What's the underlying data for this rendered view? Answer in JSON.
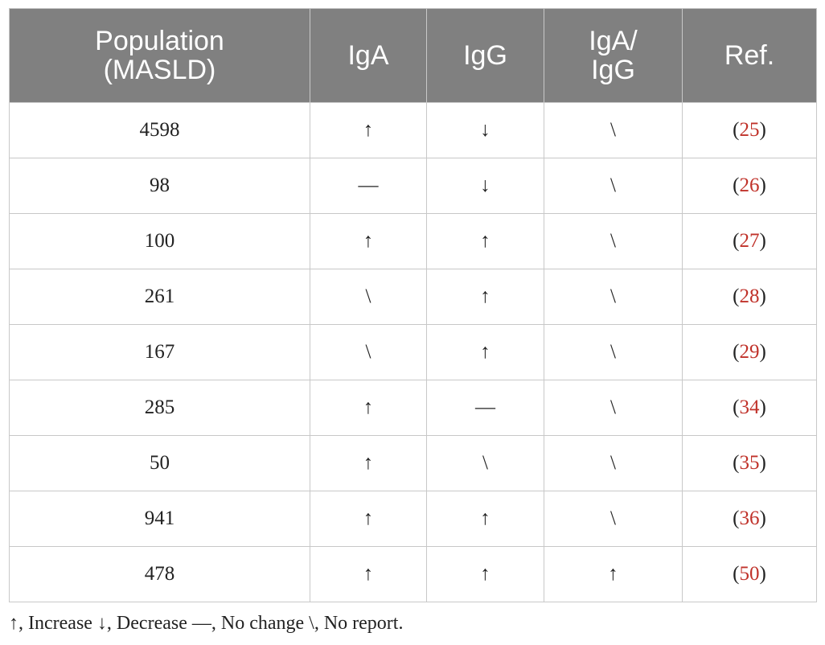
{
  "table": {
    "headers": [
      {
        "lines": [
          "Population",
          "(MASLD)"
        ]
      },
      {
        "lines": [
          "IgA"
        ]
      },
      {
        "lines": [
          "IgG"
        ]
      },
      {
        "lines": [
          "IgA/",
          "IgG"
        ]
      },
      {
        "lines": [
          "Ref."
        ]
      }
    ],
    "rows": [
      {
        "population": "4598",
        "iga": "↑",
        "igg": "↓",
        "ratio": "\\",
        "ref": "25"
      },
      {
        "population": "98",
        "iga": "—",
        "igg": "↓",
        "ratio": "\\",
        "ref": "26"
      },
      {
        "population": "100",
        "iga": "↑",
        "igg": "↑",
        "ratio": "\\",
        "ref": "27"
      },
      {
        "population": "261",
        "iga": "\\",
        "igg": "↑",
        "ratio": "\\",
        "ref": "28"
      },
      {
        "population": "167",
        "iga": "\\",
        "igg": "↑",
        "ratio": "\\",
        "ref": "29"
      },
      {
        "population": "285",
        "iga": "↑",
        "igg": "—",
        "ratio": "\\",
        "ref": "34"
      },
      {
        "population": "50",
        "iga": "↑",
        "igg": "\\",
        "ratio": "\\",
        "ref": "35"
      },
      {
        "population": "941",
        "iga": "↑",
        "igg": "↑",
        "ratio": "\\",
        "ref": "36"
      },
      {
        "population": "478",
        "iga": "↑",
        "igg": "↑",
        "ratio": "↑",
        "ref": "50"
      }
    ]
  },
  "footnote": "↑, Increase ↓, Decrease —, No change \\, No report.",
  "colors": {
    "header_bg": "#808080",
    "ref_link": "#c0322a",
    "border": "#c8c8c8"
  }
}
